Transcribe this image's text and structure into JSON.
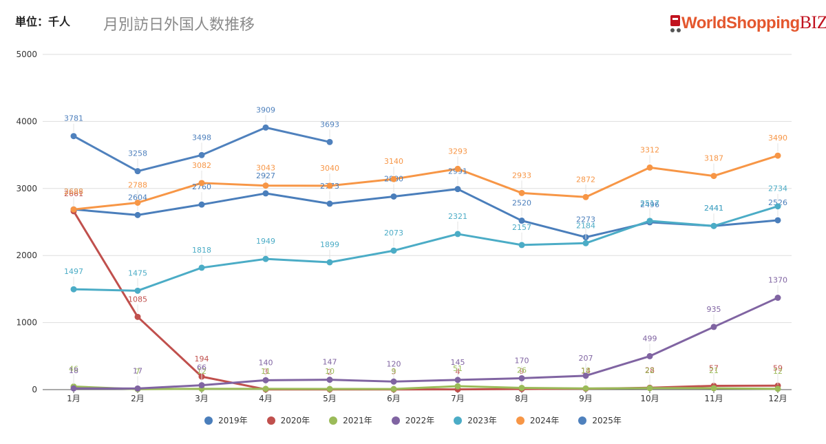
{
  "header": {
    "unit_label": "単位：千人",
    "title": "月別訪日外国人数推移",
    "logo_text": "WorldShopping",
    "logo_biz": "BIZ"
  },
  "chart_data": {
    "type": "line",
    "categories": [
      "1月",
      "2月",
      "3月",
      "4月",
      "5月",
      "6月",
      "7月",
      "8月",
      "9月",
      "10月",
      "11月",
      "12月"
    ],
    "ylim": [
      0,
      5000
    ],
    "yticks": [
      0,
      1000,
      2000,
      3000,
      4000,
      5000
    ],
    "grid": true,
    "legend_position": "bottom",
    "series": [
      {
        "name": "2019年",
        "color": "#4a7ebb",
        "values": [
          2688,
          2604,
          2760,
          2927,
          2773,
          2880,
          2991,
          2520,
          2273,
          2496,
          2441,
          2526
        ]
      },
      {
        "name": "2020年",
        "color": "#c0504d",
        "values": [
          2661,
          1085,
          194,
          3,
          2,
          3,
          4,
          9,
          14,
          28,
          57,
          59
        ]
      },
      {
        "name": "2021年",
        "color": "#9bbb59",
        "values": [
          46,
          7,
          12,
          11,
          10,
          9,
          51,
          26,
          18,
          22,
          21,
          12
        ]
      },
      {
        "name": "2022年",
        "color": "#8064a2",
        "values": [
          18,
          17,
          66,
          140,
          147,
          120,
          145,
          170,
          207,
          499,
          935,
          1370
        ]
      },
      {
        "name": "2023年",
        "color": "#4bacc6",
        "values": [
          1497,
          1475,
          1818,
          1949,
          1899,
          2073,
          2321,
          2157,
          2184,
          2517,
          2441,
          2734
        ]
      },
      {
        "name": "2024年",
        "color": "#f79646",
        "values": [
          2688,
          2788,
          3082,
          3043,
          3040,
          3140,
          3293,
          2933,
          2872,
          3312,
          3187,
          3490
        ]
      },
      {
        "name": "2025年",
        "color": "#4f81bd",
        "values": [
          3781,
          3258,
          3498,
          3909,
          3693,
          null,
          null,
          null,
          null,
          null,
          null,
          null
        ]
      }
    ]
  }
}
